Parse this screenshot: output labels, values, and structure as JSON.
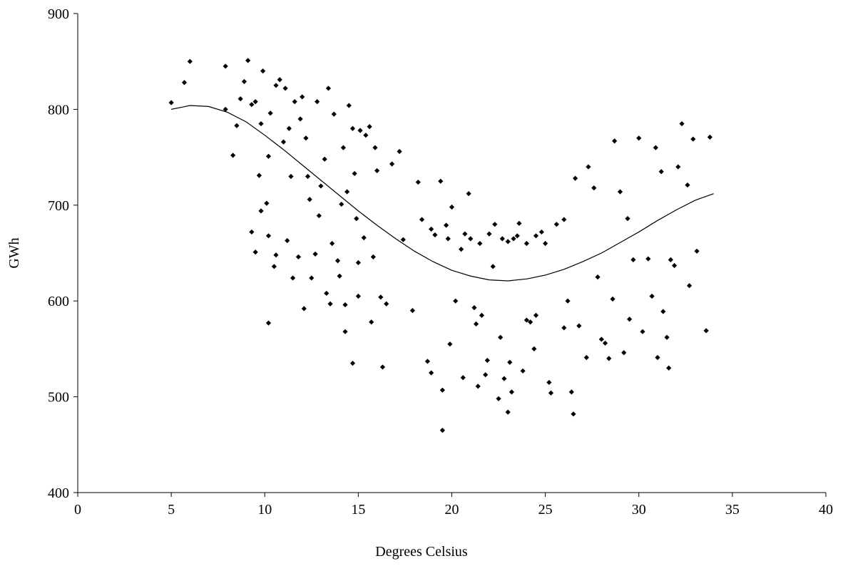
{
  "chart_data": {
    "type": "scatter",
    "x_label": "Degrees Celsius",
    "y_label": "GWh",
    "xlim": [
      0,
      40
    ],
    "xticks": [
      0,
      5,
      10,
      15,
      20,
      25,
      30,
      35,
      40
    ],
    "ylim": [
      400,
      900
    ],
    "yticks": [
      400,
      500,
      600,
      700,
      800,
      900
    ],
    "grid": false,
    "series": [
      {
        "type": "scatter",
        "color": "#000000",
        "x": [
          5.0,
          5.7,
          6.0,
          7.9,
          7.9,
          8.3,
          8.5,
          8.7,
          8.9,
          9.1,
          9.3,
          9.3,
          9.5,
          9.5,
          9.7,
          9.8,
          9.8,
          9.9,
          10.1,
          10.2,
          10.2,
          10.2,
          10.3,
          10.5,
          10.6,
          10.6,
          10.8,
          11.0,
          11.1,
          11.2,
          11.3,
          11.4,
          11.5,
          11.6,
          11.8,
          11.9,
          12.0,
          12.1,
          12.2,
          12.3,
          12.4,
          12.5,
          12.7,
          12.8,
          12.9,
          13.0,
          13.2,
          13.3,
          13.4,
          13.5,
          13.6,
          13.7,
          13.9,
          14.0,
          14.1,
          14.2,
          14.3,
          14.3,
          14.4,
          14.5,
          14.7,
          14.7,
          14.8,
          14.9,
          15.0,
          15.0,
          15.1,
          15.3,
          15.4,
          15.6,
          15.7,
          15.8,
          15.9,
          16.0,
          16.2,
          16.3,
          16.5,
          16.8,
          17.2,
          17.4,
          17.9,
          18.2,
          18.4,
          18.7,
          18.9,
          19.1,
          19.4,
          19.5,
          19.5,
          19.7,
          19.9,
          20.0,
          20.2,
          20.5,
          20.6,
          20.9,
          21.2,
          21.3,
          21.4,
          21.6,
          21.8,
          21.9,
          22.2,
          22.5,
          22.6,
          22.8,
          23.0,
          23.1,
          23.2,
          23.3,
          23.6,
          23.8,
          24.0,
          24.2,
          24.4,
          24.5,
          24.8,
          25.2,
          25.3,
          25.6,
          26.0,
          26.2,
          26.4,
          26.5,
          26.6,
          26.8,
          27.2,
          27.3,
          27.6,
          27.8,
          28.0,
          28.2,
          28.4,
          28.6,
          28.7,
          29.0,
          29.2,
          29.4,
          29.5,
          29.7,
          30.0,
          30.2,
          30.5,
          30.7,
          30.9,
          31.0,
          31.2,
          31.3,
          31.5,
          31.6,
          31.7,
          31.9,
          32.1,
          32.3,
          32.6,
          32.7,
          32.9,
          33.1,
          33.6,
          33.8,
          20.7,
          21.0,
          21.5,
          22.0,
          22.3,
          22.7,
          23.0,
          23.5,
          24.0,
          24.5,
          25.0,
          18.9,
          19.8,
          26.0
        ],
        "values": [
          807,
          828,
          850,
          845,
          800,
          752,
          783,
          811,
          829,
          851,
          672,
          805,
          651,
          808,
          731,
          785,
          694,
          840,
          702,
          577,
          668,
          751,
          796,
          636,
          648,
          825,
          831,
          766,
          822,
          663,
          780,
          730,
          624,
          808,
          646,
          790,
          813,
          592,
          770,
          730,
          706,
          624,
          649,
          808,
          689,
          720,
          748,
          608,
          822,
          597,
          660,
          795,
          642,
          626,
          701,
          760,
          596,
          568,
          714,
          804,
          535,
          780,
          733,
          686,
          640,
          605,
          778,
          666,
          773,
          782,
          578,
          646,
          760,
          736,
          604,
          531,
          597,
          743,
          756,
          664,
          590,
          724,
          685,
          537,
          525,
          669,
          725,
          465,
          507,
          679,
          555,
          698,
          600,
          654,
          520,
          712,
          593,
          576,
          511,
          585,
          523,
          538,
          636,
          498,
          562,
          519,
          484,
          536,
          505,
          665,
          681,
          527,
          580,
          578,
          550,
          585,
          672,
          515,
          504,
          680,
          572,
          600,
          505,
          482,
          728,
          574,
          541,
          740,
          718,
          625,
          560,
          556,
          540,
          602,
          767,
          714,
          546,
          686,
          581,
          643,
          770,
          568,
          644,
          605,
          760,
          541,
          735,
          589,
          562,
          530,
          643,
          637,
          740,
          785,
          721,
          616,
          769,
          652,
          569,
          771,
          670,
          665,
          660,
          670,
          680,
          665,
          662,
          668,
          660,
          668,
          660,
          675,
          665,
          685
        ]
      },
      {
        "type": "line",
        "color": "#000000",
        "x": [
          5,
          6,
          7,
          8,
          9,
          10,
          11,
          12,
          13,
          14,
          15,
          16,
          17,
          18,
          19,
          20,
          21,
          22,
          23,
          24,
          25,
          26,
          27,
          28,
          29,
          30,
          31,
          32,
          33,
          34
        ],
        "values": [
          800,
          804,
          803,
          797,
          787,
          773,
          758,
          742,
          726,
          710,
          694,
          679,
          665,
          652,
          641,
          632,
          626,
          622,
          621,
          623,
          627,
          633,
          641,
          650,
          661,
          672,
          684,
          695,
          705,
          712
        ]
      }
    ]
  }
}
